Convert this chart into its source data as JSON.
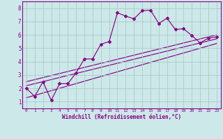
{
  "xlabel": "Windchill (Refroidissement éolien,°C)",
  "bg_color": "#cce8e8",
  "grid_color": "#aacccc",
  "line_color": "#880088",
  "xlim": [
    -0.5,
    23.5
  ],
  "ylim": [
    0.5,
    8.5
  ],
  "xticks": [
    0,
    1,
    2,
    3,
    4,
    5,
    6,
    7,
    8,
    9,
    10,
    11,
    12,
    13,
    14,
    15,
    16,
    17,
    18,
    19,
    20,
    21,
    22,
    23
  ],
  "yticks": [
    1,
    2,
    3,
    4,
    5,
    6,
    7,
    8
  ],
  "line1_x": [
    0,
    1,
    2,
    3,
    4,
    5,
    6,
    7,
    8,
    9,
    10,
    11,
    12,
    13,
    14,
    15,
    16,
    17,
    18,
    19,
    20,
    21,
    22,
    23
  ],
  "line1_y": [
    2.0,
    1.4,
    2.5,
    1.1,
    2.35,
    2.35,
    3.15,
    4.2,
    4.2,
    5.3,
    5.5,
    7.65,
    7.4,
    7.2,
    7.8,
    7.85,
    6.85,
    7.25,
    6.4,
    6.45,
    5.95,
    5.4,
    5.75,
    5.85
  ],
  "line2_x": [
    0,
    23
  ],
  "line2_y": [
    2.5,
    6.0
  ],
  "line3_x": [
    0,
    23
  ],
  "line3_y": [
    2.2,
    5.7
  ],
  "line4_x": [
    0,
    23
  ],
  "line4_y": [
    1.3,
    5.35
  ]
}
